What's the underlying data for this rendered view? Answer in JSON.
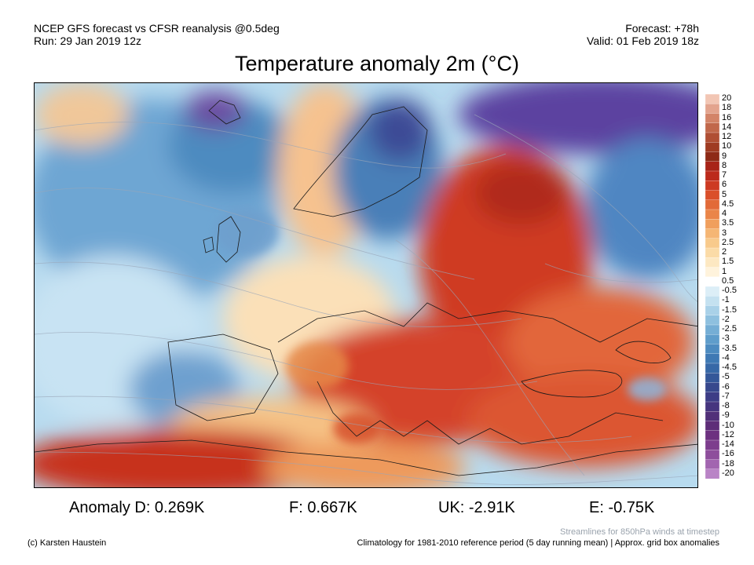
{
  "header": {
    "line1": "NCEP GFS forecast vs CFSR reanalysis @0.5deg",
    "line2": "Run: 29 Jan 2019 12z",
    "forecast": "Forecast: +78h",
    "valid": "Valid: 01 Feb 2019 18z"
  },
  "title": "Temperature anomaly 2m (°C)",
  "colorbar": {
    "labels": [
      "20",
      "18",
      "16",
      "14",
      "12",
      "10",
      "9",
      "8",
      "7",
      "6",
      "5",
      "4.5",
      "4",
      "3.5",
      "3",
      "2.5",
      "2",
      "1.5",
      "1",
      "0.5",
      "-0.5",
      "-1",
      "-1.5",
      "-2",
      "-2.5",
      "-3",
      "-3.5",
      "-4",
      "-4.5",
      "-5",
      "-6",
      "-7",
      "-8",
      "-9",
      "-10",
      "-12",
      "-14",
      "-16",
      "-18",
      "-20"
    ],
    "colors": [
      "#f2c6b4",
      "#e3a48e",
      "#d38468",
      "#c1684b",
      "#b04f34",
      "#9f3b22",
      "#8e2a16",
      "#a82418",
      "#bc2a1c",
      "#cd3a22",
      "#da4f2a",
      "#e26a38",
      "#ea8548",
      "#f09f5d",
      "#f5b674",
      "#f8ca8c",
      "#fbdba7",
      "#fde8c2",
      "#fff3dc",
      "#ffffff",
      "#dceef7",
      "#c4e1f0",
      "#a9d1e8",
      "#8ec0df",
      "#75aed5",
      "#5f9dcb",
      "#4d8bc0",
      "#3f79b4",
      "#3768a7",
      "#345799",
      "#37488d",
      "#3d3d86",
      "#46357f",
      "#513079",
      "#5e2d78",
      "#6d3180",
      "#7d3d8d",
      "#8e4e9c",
      "#a265b0",
      "#b983c6"
    ]
  },
  "anomalies": {
    "d": "Anomaly D: 0.269K",
    "f": "F: 0.667K",
    "uk": "UK: -2.91K",
    "e": "E: -0.75K"
  },
  "footer": {
    "copyright": "(c) Karsten Haustein",
    "streamlines": "Streamlines for 850hPa winds at timestep",
    "climatology": "Climatology for 1981-2010 reference period (5 day running mean) | Approx. grid box anomalies"
  }
}
